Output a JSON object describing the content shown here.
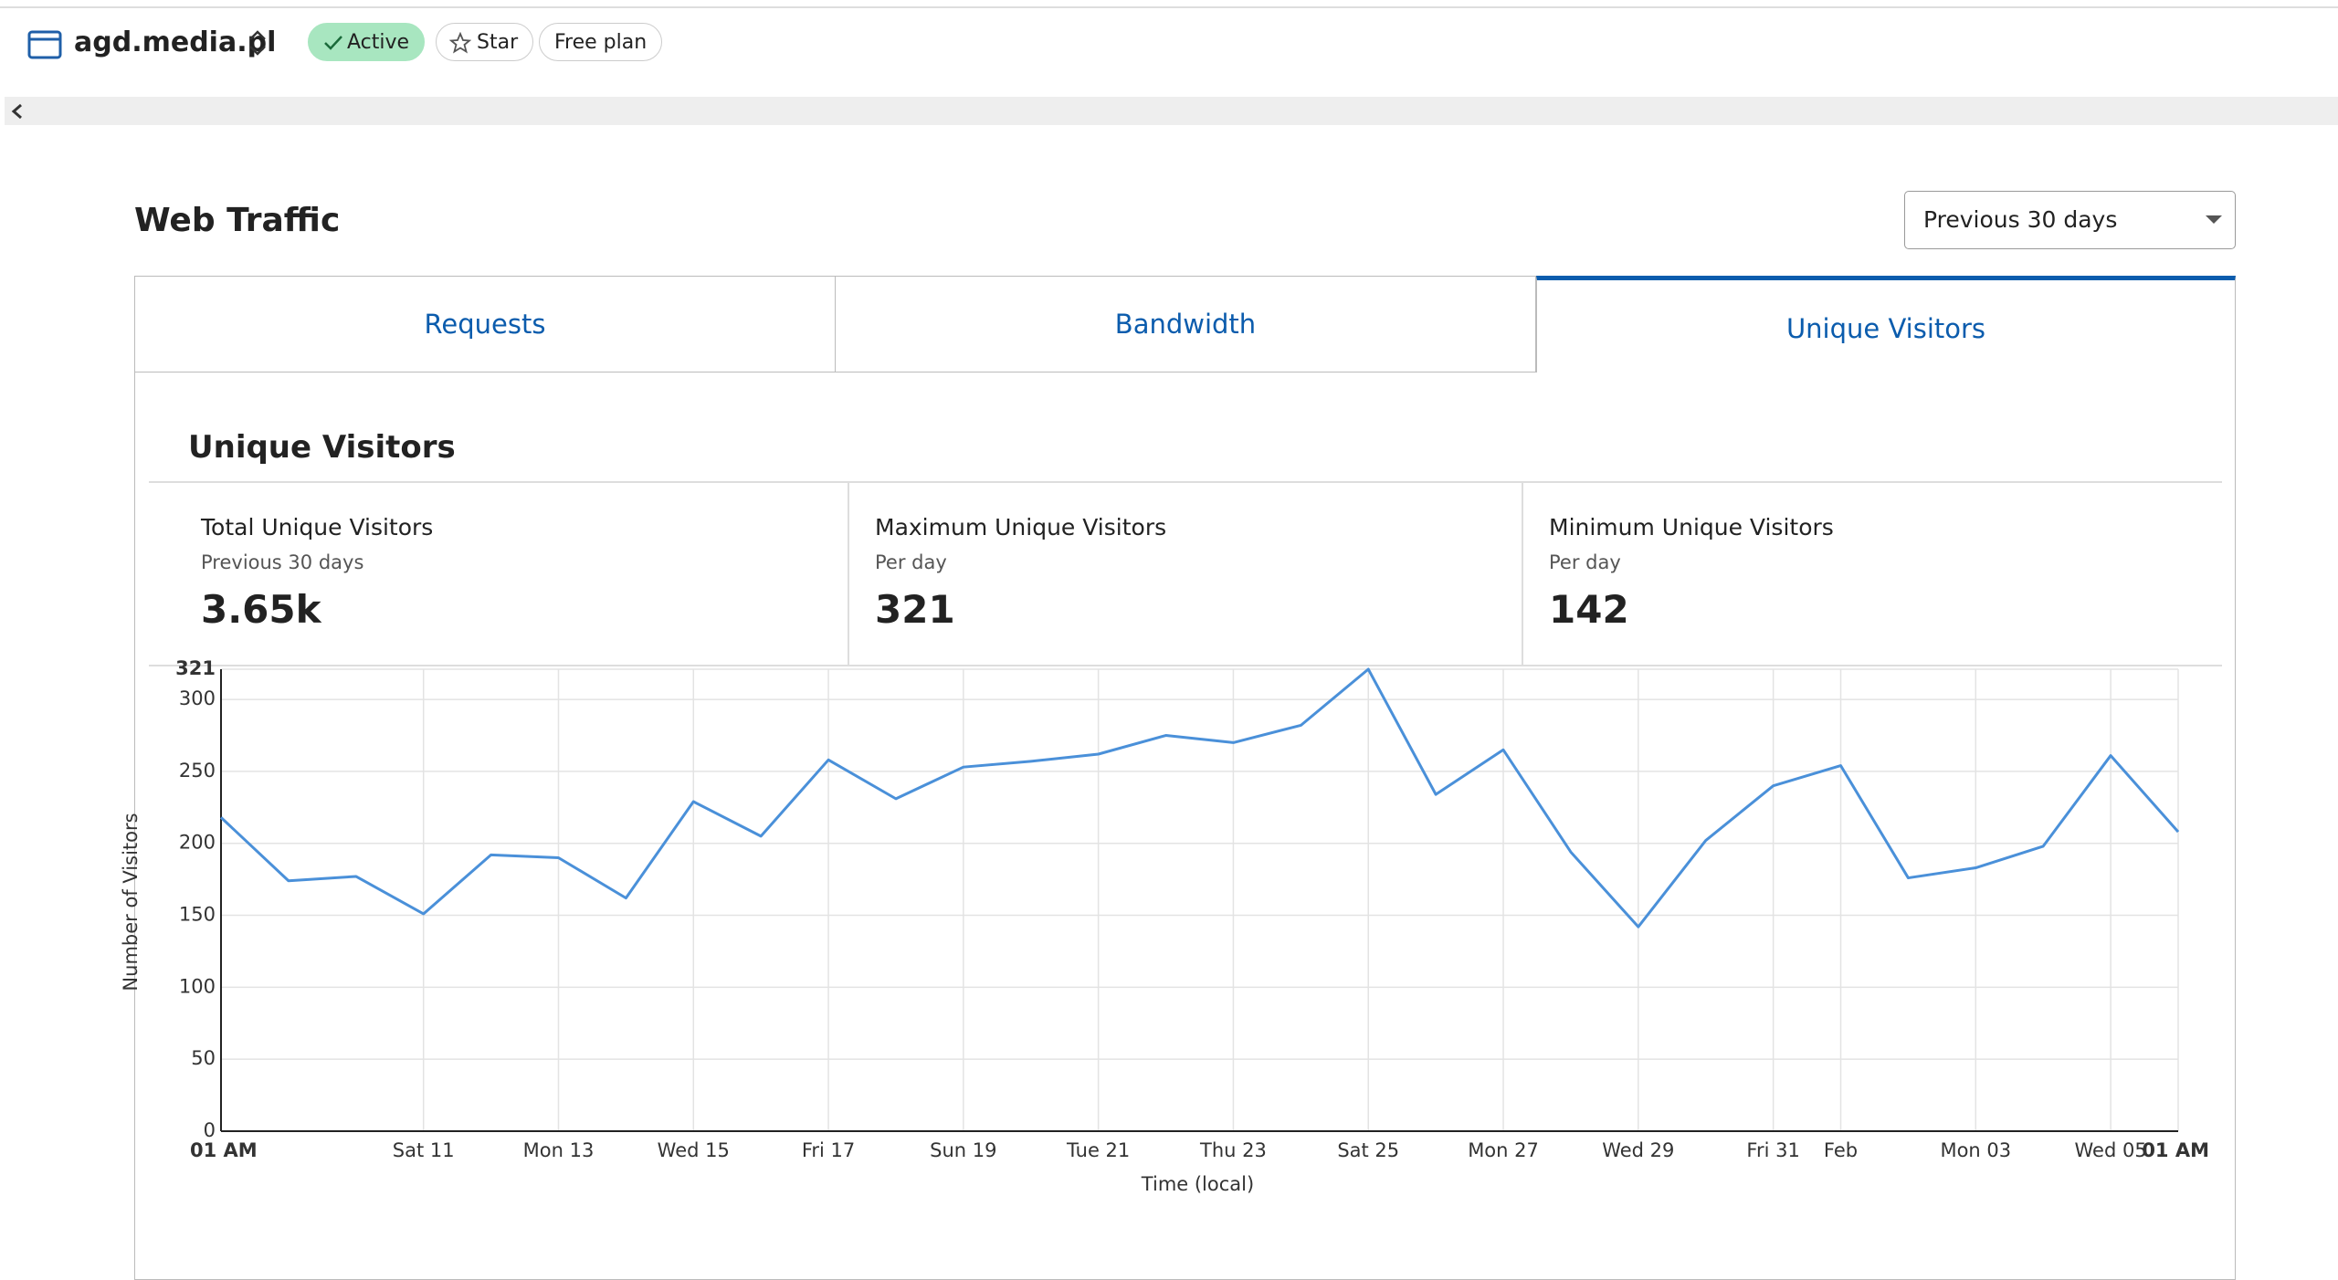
{
  "header": {
    "site": "agd.media.pl",
    "status": "Active",
    "star": "Star",
    "plan": "Free plan"
  },
  "section_title": "Web Traffic",
  "range_select": "Previous 30 days",
  "tabs": [
    "Requests",
    "Bandwidth",
    "Unique Visitors"
  ],
  "panel_title": "Unique Visitors",
  "stats": [
    {
      "label": "Total Unique Visitors",
      "sub": "Previous 30 days",
      "value": "3.65k"
    },
    {
      "label": "Maximum Unique Visitors",
      "sub": "Per day",
      "value": 321
    },
    {
      "label": "Minimum Unique Visitors",
      "sub": "Per day",
      "value": 142
    }
  ],
  "chart_data": {
    "type": "line",
    "x_label": "Time (local)",
    "y_label": "Number of Visitors",
    "categories": [
      "01 AM",
      null,
      null,
      "Sat 11",
      null,
      "Mon 13",
      null,
      "Wed 15",
      null,
      "Fri 17",
      null,
      "Sun 19",
      null,
      "Tue 21",
      null,
      "Thu 23",
      null,
      "Sat 25",
      null,
      "Mon 27",
      null,
      "Wed 29",
      null,
      "Fri 31",
      "Feb",
      null,
      "Mon 03",
      null,
      "Wed 05",
      "01 AM"
    ],
    "values": [
      218,
      174,
      177,
      151,
      192,
      190,
      162,
      229,
      205,
      258,
      231,
      253,
      257,
      262,
      275,
      270,
      282,
      321,
      234,
      265,
      194,
      142,
      202,
      240,
      254,
      176,
      183,
      198,
      261,
      208
    ],
    "color": "#4a90d9",
    "ylim": [
      0,
      321
    ],
    "yticks": [
      0,
      50,
      100,
      150,
      200,
      250,
      300,
      321
    ],
    "grid": true
  }
}
